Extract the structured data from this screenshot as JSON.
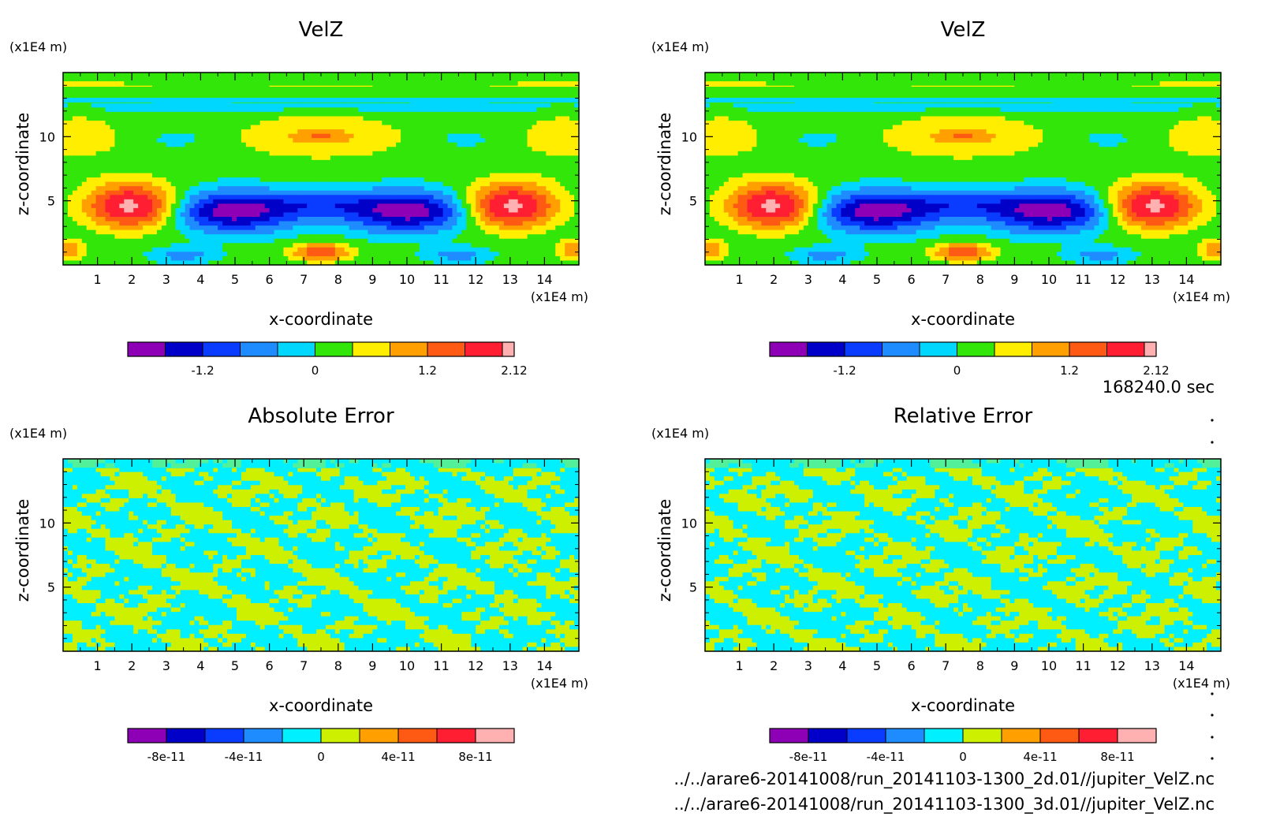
{
  "colors": {
    "velz": [
      "#8e00b5",
      "#0000c8",
      "#0a3cff",
      "#1e8cff",
      "#00d7ff",
      "#32e60a",
      "#ffee00",
      "#ffa000",
      "#ff5a14",
      "#ff1e32",
      "#ffb0b0"
    ],
    "error": [
      "#8e00b5",
      "#0000c8",
      "#0a3cff",
      "#1e8cff",
      "#00f0ff",
      "#cdf000",
      "#ffa000",
      "#ff5a14",
      "#ff1e32",
      "#ffb0b0"
    ],
    "field_error_a": "#00f0ff",
    "field_error_b": "#cdf000"
  },
  "time_label": "168240.0 sec",
  "files": [
    "../../arare6-20141008/run_20141103-1300_2d.01//jupiter_VelZ.nc",
    "../../arare6-20141008/run_20141103-1300_3d.01//jupiter_VelZ.nc"
  ],
  "panels": [
    {
      "title": "VelZ",
      "ylabel": "z-coordinate",
      "xlabel": "x-coordinate",
      "x_unit": "(x1E4 m)",
      "y_unit": "(x1E4 m)",
      "xticks": [
        "1",
        "2",
        "3",
        "4",
        "5",
        "6",
        "7",
        "8",
        "9",
        "10",
        "11",
        "12",
        "13",
        "14"
      ],
      "yticks": [
        "5",
        "10"
      ],
      "colorbar": [
        "-1.2",
        "0",
        "1.2",
        "2.12"
      ]
    },
    {
      "title": "VelZ",
      "ylabel": "z-coordinate",
      "xlabel": "x-coordinate",
      "x_unit": "(x1E4 m)",
      "y_unit": "(x1E4 m)",
      "xticks": [
        "1",
        "2",
        "3",
        "4",
        "5",
        "6",
        "7",
        "8",
        "9",
        "10",
        "11",
        "12",
        "13",
        "14"
      ],
      "yticks": [
        "5",
        "10"
      ],
      "colorbar": [
        "-1.2",
        "0",
        "1.2",
        "2.12"
      ]
    },
    {
      "title": "Absolute Error",
      "ylabel": "z-coordinate",
      "xlabel": "x-coordinate",
      "x_unit": "(x1E4 m)",
      "y_unit": "(x1E4 m)",
      "xticks": [
        "1",
        "2",
        "3",
        "4",
        "5",
        "6",
        "7",
        "8",
        "9",
        "10",
        "11",
        "12",
        "13",
        "14"
      ],
      "yticks": [
        "5",
        "10"
      ],
      "colorbar": [
        "-8e-11",
        "-4e-11",
        "0",
        "4e-11",
        "8e-11"
      ]
    },
    {
      "title": "Relative Error",
      "ylabel": "z-coordinate",
      "xlabel": "x-coordinate",
      "x_unit": "(x1E4 m)",
      "y_unit": "(x1E4 m)",
      "xticks": [
        "1",
        "2",
        "3",
        "4",
        "5",
        "6",
        "7",
        "8",
        "9",
        "10",
        "11",
        "12",
        "13",
        "14"
      ],
      "yticks": [
        "5",
        "10"
      ],
      "colorbar": [
        "-8e-11",
        "-4e-11",
        "0",
        "4e-11",
        "8e-11"
      ]
    }
  ],
  "chart_data": [
    {
      "type": "heatmap",
      "title": "VelZ",
      "xlabel": "x-coordinate",
      "ylabel": "z-coordinate",
      "xlim": [
        0,
        15
      ],
      "ylim": [
        0,
        15
      ],
      "color_levels": [
        -2.0,
        -1.6,
        -1.2,
        -0.8,
        -0.4,
        0,
        0.4,
        0.8,
        1.2,
        1.6,
        2.0,
        2.12
      ]
    },
    {
      "type": "heatmap",
      "title": "VelZ",
      "xlabel": "x-coordinate",
      "ylabel": "z-coordinate",
      "xlim": [
        0,
        15
      ],
      "ylim": [
        0,
        15
      ],
      "color_levels": [
        -2.0,
        -1.6,
        -1.2,
        -0.8,
        -0.4,
        0,
        0.4,
        0.8,
        1.2,
        1.6,
        2.0,
        2.12
      ]
    },
    {
      "type": "heatmap",
      "title": "Absolute Error",
      "xlabel": "x-coordinate",
      "ylabel": "z-coordinate",
      "xlim": [
        0,
        15
      ],
      "ylim": [
        0,
        15
      ],
      "color_levels": [
        -1e-10,
        -8e-11,
        -6e-11,
        -4e-11,
        -2e-11,
        0,
        2e-11,
        4e-11,
        6e-11,
        8e-11,
        1e-10
      ]
    },
    {
      "type": "heatmap",
      "title": "Relative Error",
      "xlabel": "x-coordinate",
      "ylabel": "z-coordinate",
      "xlim": [
        0,
        15
      ],
      "ylim": [
        0,
        15
      ],
      "color_levels": [
        -1e-10,
        -8e-11,
        -6e-11,
        -4e-11,
        -2e-11,
        0,
        2e-11,
        4e-11,
        6e-11,
        8e-11,
        1e-10
      ]
    }
  ]
}
